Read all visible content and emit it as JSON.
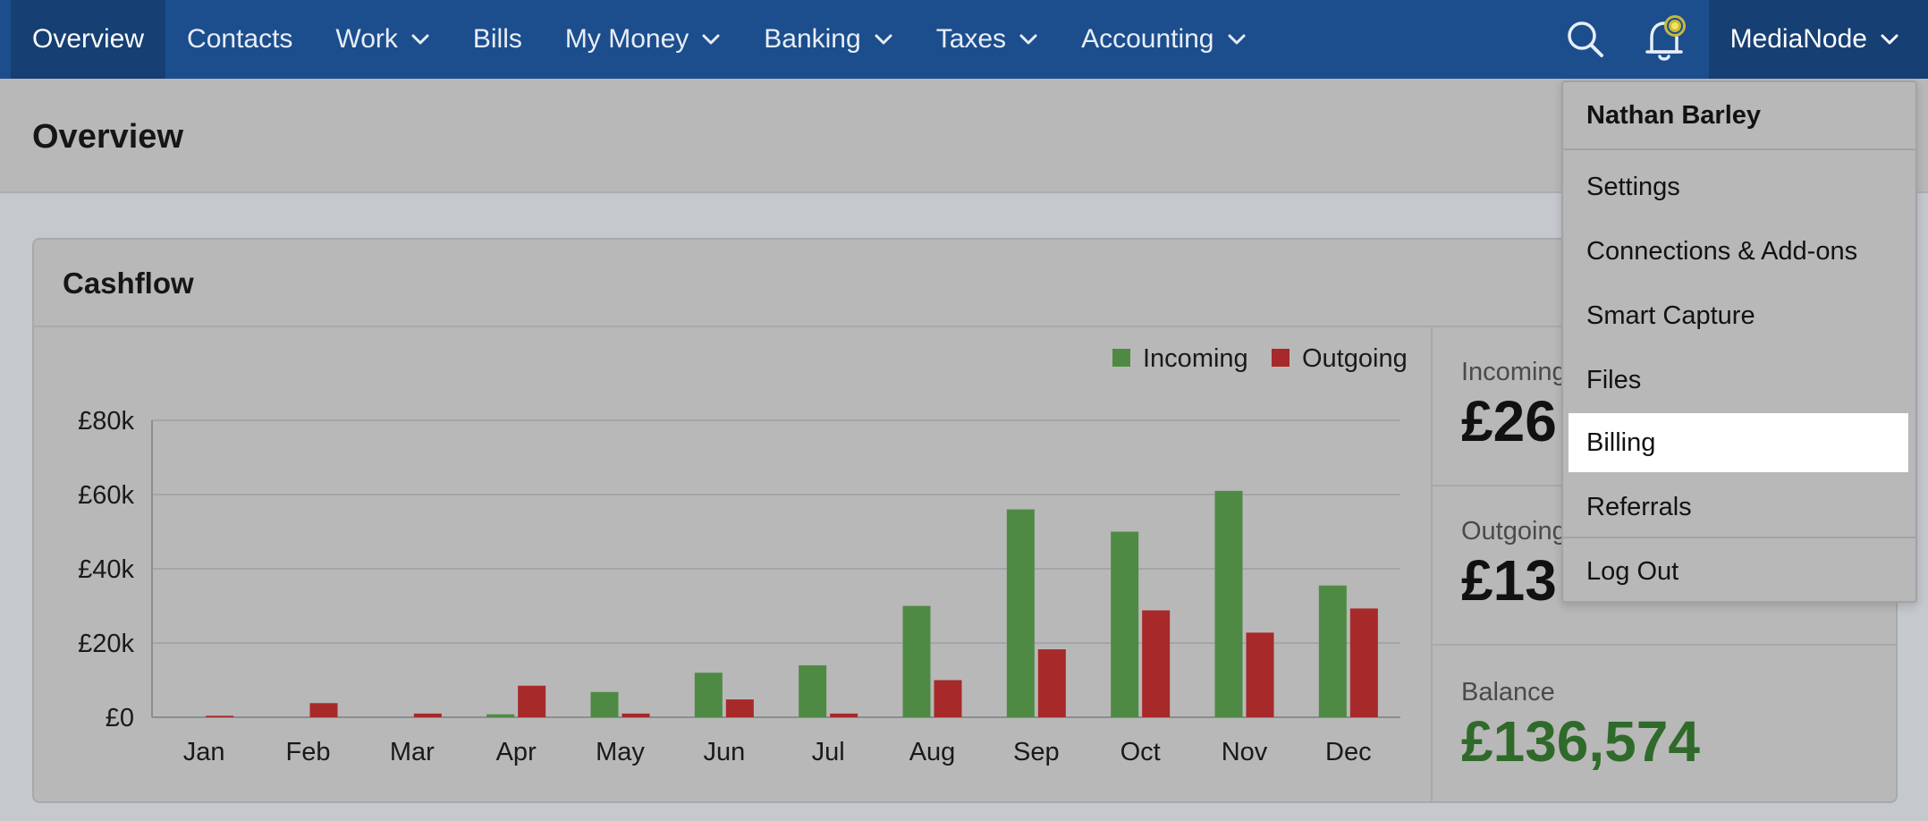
{
  "nav": {
    "items": [
      {
        "label": "Overview",
        "active": true,
        "dropdown": false
      },
      {
        "label": "Contacts",
        "active": false,
        "dropdown": false
      },
      {
        "label": "Work",
        "active": false,
        "dropdown": true
      },
      {
        "label": "Bills",
        "active": false,
        "dropdown": false
      },
      {
        "label": "My Money",
        "active": false,
        "dropdown": true
      },
      {
        "label": "Banking",
        "active": false,
        "dropdown": true
      },
      {
        "label": "Taxes",
        "active": false,
        "dropdown": true
      },
      {
        "label": "Accounting",
        "active": false,
        "dropdown": true
      }
    ],
    "account_label": "MediaNode",
    "search_icon": "search-icon",
    "bell_icon": "bell-icon",
    "colors": {
      "bar": "#1c4e8d",
      "active": "#163f73",
      "notification_dot": "#e3d54a"
    }
  },
  "page": {
    "title": "Overview"
  },
  "cashflow": {
    "title": "Cashflow",
    "incoming_label": "Incoming",
    "incoming_value": "£26",
    "outgoing_label": "Outgoing",
    "outgoing_value": "£13",
    "balance_label": "Balance",
    "balance_value": "£136,574"
  },
  "chart_data": {
    "type": "bar",
    "categories": [
      "Jan",
      "Feb",
      "Mar",
      "Apr",
      "May",
      "Jun",
      "Jul",
      "Aug",
      "Sep",
      "Oct",
      "Nov",
      "Dec"
    ],
    "series": [
      {
        "name": "Incoming",
        "color": "#4f8a45",
        "values": [
          0,
          0,
          0,
          800,
          6800,
          12000,
          14000,
          30000,
          56000,
          50000,
          61000,
          35500
        ]
      },
      {
        "name": "Outgoing",
        "color": "#a8292a",
        "values": [
          400,
          3800,
          1000,
          8500,
          1000,
          4800,
          1000,
          10000,
          18300,
          28800,
          22800,
          29300
        ]
      }
    ],
    "yticks": [
      "£0",
      "£20k",
      "£40k",
      "£60k",
      "£80k"
    ],
    "ylim": [
      0,
      80000
    ],
    "grid": true,
    "legend": "top-right"
  },
  "menu": {
    "user_name": "Nathan Barley",
    "items": [
      {
        "label": "Settings"
      },
      {
        "label": "Connections & Add-ons"
      },
      {
        "label": "Smart Capture"
      },
      {
        "label": "Files"
      },
      {
        "label": "Billing",
        "highlighted": true
      },
      {
        "label": "Referrals"
      },
      {
        "label": "Log Out"
      }
    ]
  }
}
